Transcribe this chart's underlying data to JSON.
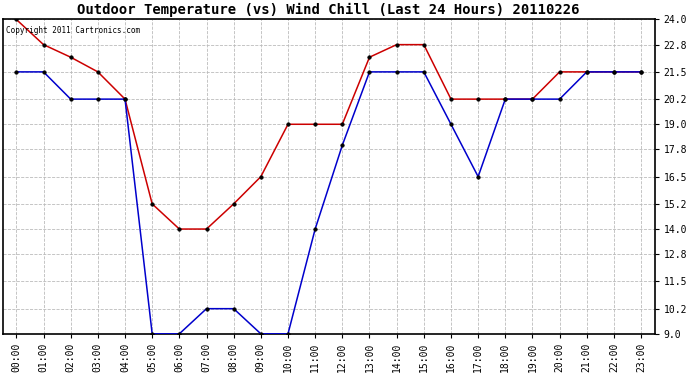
{
  "title": "Outdoor Temperature (vs) Wind Chill (Last 24 Hours) 20110226",
  "copyright": "Copyright 2011 Cartronics.com",
  "x_labels": [
    "00:00",
    "01:00",
    "02:00",
    "03:00",
    "04:00",
    "05:00",
    "06:00",
    "07:00",
    "08:00",
    "09:00",
    "10:00",
    "11:00",
    "12:00",
    "13:00",
    "14:00",
    "15:00",
    "16:00",
    "17:00",
    "18:00",
    "19:00",
    "20:00",
    "21:00",
    "22:00",
    "23:00"
  ],
  "temp": [
    24.0,
    22.8,
    22.2,
    21.5,
    20.2,
    15.2,
    14.0,
    14.0,
    15.2,
    16.5,
    19.0,
    19.0,
    19.0,
    22.2,
    22.8,
    22.8,
    20.2,
    20.2,
    20.2,
    20.2,
    21.5,
    21.5,
    21.5,
    21.5
  ],
  "wind_chill": [
    21.5,
    21.5,
    20.2,
    20.2,
    20.2,
    9.0,
    9.0,
    10.2,
    10.2,
    9.0,
    9.0,
    14.0,
    18.0,
    21.5,
    21.5,
    21.5,
    19.0,
    16.5,
    20.2,
    20.2,
    20.2,
    21.5,
    21.5,
    21.5
  ],
  "temp_color": "#cc0000",
  "wind_chill_color": "#0000cc",
  "bg_color": "#ffffff",
  "plot_bg_color": "#ffffff",
  "grid_color": "#bbbbbb",
  "ylim_min": 9.0,
  "ylim_max": 24.0,
  "yticks": [
    9.0,
    10.2,
    11.5,
    12.8,
    14.0,
    15.2,
    16.5,
    17.8,
    19.0,
    20.2,
    21.5,
    22.8,
    24.0
  ],
  "title_fontsize": 10,
  "tick_fontsize": 7,
  "marker": "o",
  "marker_size": 2.5,
  "linewidth": 1.1
}
